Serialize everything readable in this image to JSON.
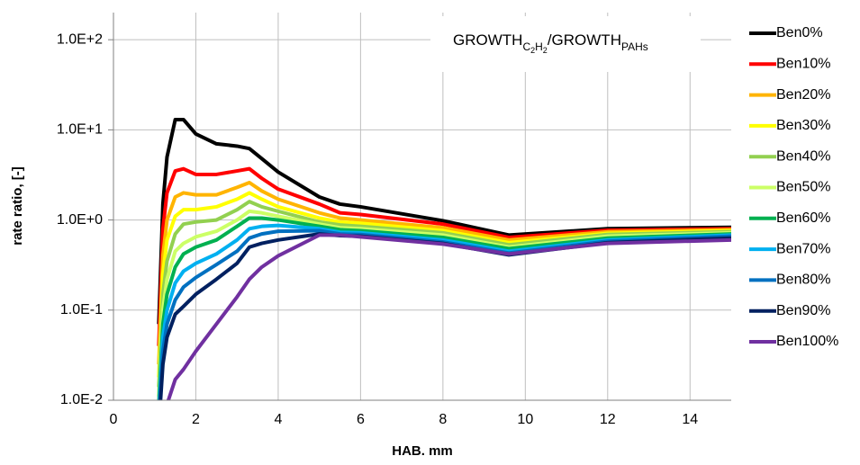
{
  "chart_data": {
    "type": "line",
    "annotation": [
      "GROWTH",
      "C",
      "2",
      "H",
      "2",
      "/GROWTH",
      "PAHs"
    ],
    "x_label": "HAB. mm",
    "y_label": "rate ratio, [-]",
    "log_y": true,
    "grid": true,
    "legend": "right",
    "xlim": [
      0,
      15
    ],
    "xticks": [
      0,
      2,
      4,
      6,
      8,
      10,
      12,
      14
    ],
    "ylim": [
      0.01,
      200
    ],
    "yticks": [
      {
        "value": 0.01,
        "label": "1.0E-2"
      },
      {
        "value": 0.1,
        "label": "1.0E-1"
      },
      {
        "value": 1,
        "label": "1.0E+0"
      },
      {
        "value": 10,
        "label": "1.0E+1"
      },
      {
        "value": 100,
        "label": "1.0E+2"
      }
    ],
    "x": [
      1.1,
      1.2,
      1.3,
      1.5,
      1.7,
      2,
      2.5,
      3,
      3.3,
      3.6,
      4,
      5,
      5.5,
      6,
      8,
      9.6,
      12,
      15
    ],
    "series": [
      {
        "name": "Ben0%",
        "color": "#000000",
        "values": [
          0.07,
          1.5,
          5,
          13,
          13,
          9,
          7,
          6.6,
          6.2,
          4.8,
          3.4,
          1.8,
          1.5,
          1.4,
          0.98,
          0.68,
          0.8,
          0.83
        ]
      },
      {
        "name": "Ben10%",
        "color": "#ff0000",
        "values": [
          0.04,
          0.8,
          2,
          3.5,
          3.7,
          3.2,
          3.2,
          3.5,
          3.7,
          2.9,
          2.2,
          1.5,
          1.2,
          1.15,
          0.9,
          0.64,
          0.77,
          0.8
        ]
      },
      {
        "name": "Ben20%",
        "color": "#ffb400",
        "values": [
          0.025,
          0.4,
          1,
          1.8,
          2,
          1.9,
          1.9,
          2.3,
          2.6,
          2.1,
          1.7,
          1.2,
          1.05,
          1.0,
          0.82,
          0.6,
          0.74,
          0.78
        ]
      },
      {
        "name": "Ben30%",
        "color": "#ffff00",
        "values": [
          0.018,
          0.25,
          0.6,
          1.1,
          1.3,
          1.3,
          1.4,
          1.7,
          2.0,
          1.7,
          1.4,
          1.05,
          0.95,
          0.92,
          0.76,
          0.56,
          0.71,
          0.76
        ]
      },
      {
        "name": "Ben40%",
        "color": "#92d050",
        "values": [
          0.014,
          0.15,
          0.35,
          0.7,
          0.9,
          0.95,
          1.0,
          1.3,
          1.6,
          1.4,
          1.25,
          0.95,
          0.88,
          0.85,
          0.72,
          0.53,
          0.69,
          0.74
        ]
      },
      {
        "name": "Ben50%",
        "color": "#ccff66",
        "values": [
          0.011,
          0.1,
          0.22,
          0.45,
          0.55,
          0.65,
          0.75,
          1.0,
          1.25,
          1.2,
          1.1,
          0.9,
          0.82,
          0.8,
          0.68,
          0.5,
          0.66,
          0.72
        ]
      },
      {
        "name": "Ben60%",
        "color": "#00b050",
        "values": [
          0.009,
          0.07,
          0.15,
          0.3,
          0.42,
          0.5,
          0.6,
          0.85,
          1.05,
          1.05,
          1.0,
          0.85,
          0.78,
          0.76,
          0.64,
          0.48,
          0.63,
          0.7
        ]
      },
      {
        "name": "Ben70%",
        "color": "#00b0f0",
        "values": [
          0.007,
          0.05,
          0.1,
          0.2,
          0.27,
          0.33,
          0.42,
          0.6,
          0.8,
          0.85,
          0.87,
          0.8,
          0.73,
          0.72,
          0.6,
          0.45,
          0.6,
          0.68
        ]
      },
      {
        "name": "Ben80%",
        "color": "#0070c0",
        "values": [
          0.006,
          0.035,
          0.07,
          0.13,
          0.18,
          0.23,
          0.32,
          0.45,
          0.63,
          0.7,
          0.75,
          0.76,
          0.7,
          0.69,
          0.57,
          0.43,
          0.58,
          0.66
        ]
      },
      {
        "name": "Ben90%",
        "color": "#002060",
        "values": [
          0.005,
          0.025,
          0.05,
          0.09,
          0.11,
          0.15,
          0.22,
          0.33,
          0.5,
          0.55,
          0.6,
          0.7,
          0.67,
          0.66,
          0.55,
          0.41,
          0.56,
          0.63
        ]
      },
      {
        "name": "Ben100%",
        "color": "#7030a0",
        "values": [
          null,
          null,
          0.009,
          0.017,
          0.022,
          0.035,
          0.07,
          0.14,
          0.22,
          0.3,
          0.4,
          0.68,
          0.68,
          0.65,
          0.54,
          0.42,
          0.55,
          0.6
        ]
      }
    ]
  }
}
